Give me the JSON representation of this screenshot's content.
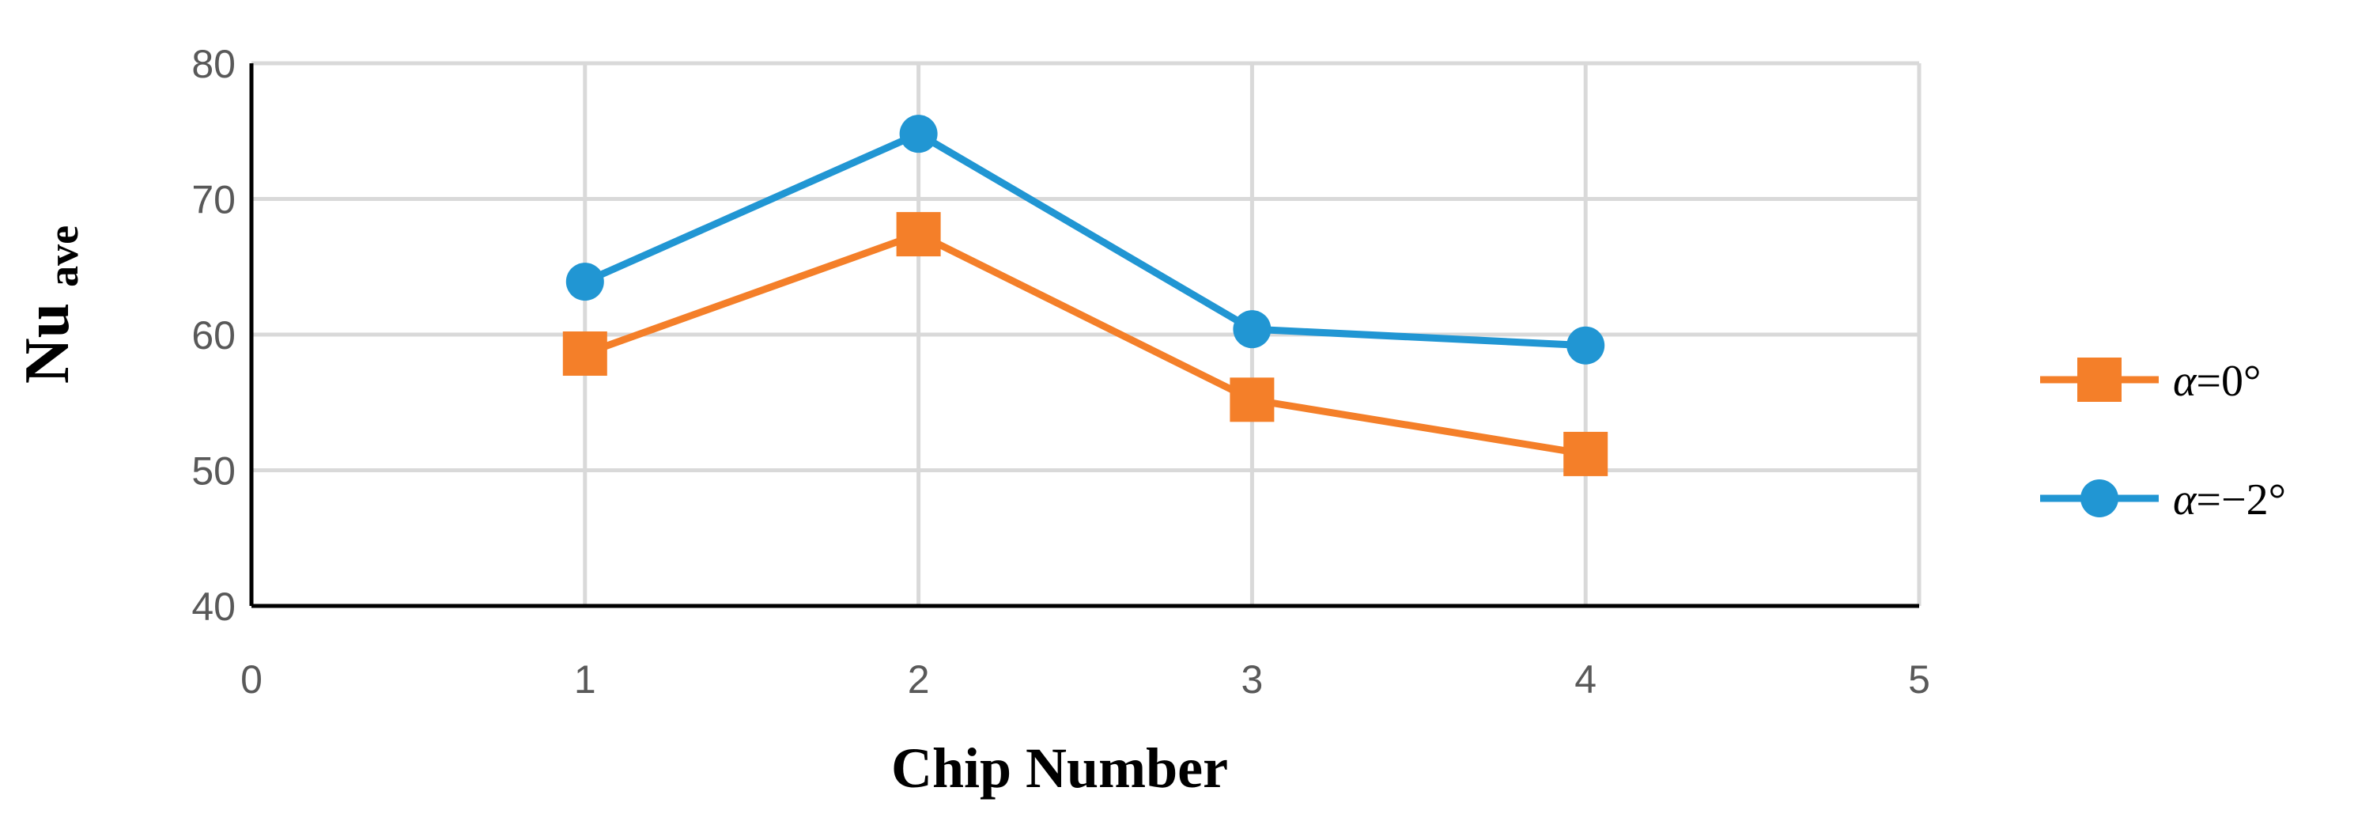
{
  "chart_data": {
    "type": "line",
    "title": "",
    "xlabel": "Chip Number",
    "ylabel": "Nu",
    "ylabel_subscript": "ave",
    "xlim": [
      0,
      5
    ],
    "ylim": [
      40,
      80
    ],
    "x_ticks": [
      "0",
      "1",
      "2",
      "3",
      "4",
      "5"
    ],
    "y_ticks": [
      "40",
      "50",
      "60",
      "70",
      "80"
    ],
    "grid": true,
    "legend_position": "right",
    "x": [
      1,
      2,
      3,
      4
    ],
    "series": [
      {
        "name": "α=0°",
        "legend": {
          "symbol": "α",
          "text": "=0°"
        },
        "values": [
          58.6,
          67.4,
          55.2,
          51.2
        ],
        "color": "#F47F29",
        "marker": "square"
      },
      {
        "name": "α=−2°",
        "legend": {
          "symbol": "α",
          "text": "=−2°"
        },
        "values": [
          63.9,
          74.8,
          60.4,
          59.2
        ],
        "color": "#2196D3",
        "marker": "circle"
      }
    ]
  }
}
